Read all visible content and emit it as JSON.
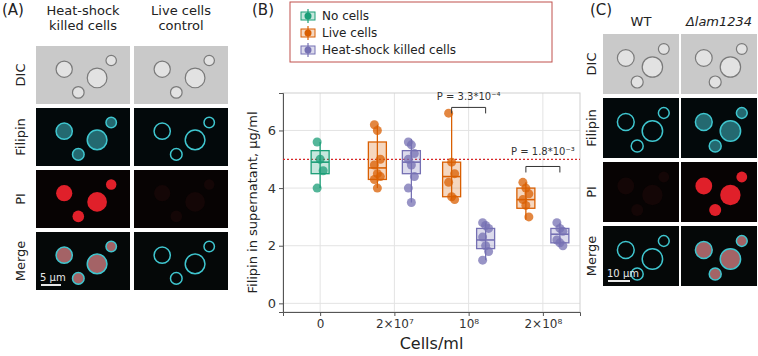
{
  "panels": {
    "a": {
      "label": "(A)",
      "columns": [
        [
          "Heat-shock",
          "killed cells"
        ],
        [
          "Live cells",
          "control"
        ]
      ],
      "rows": [
        "DIC",
        "Filipin",
        "PI",
        "Merge"
      ],
      "scale_bar": "5 µm"
    },
    "c": {
      "label": "(C)",
      "columns": [
        "WT",
        "Δlam1234"
      ],
      "rows": [
        "DIC",
        "Filipin",
        "PI",
        "Merge"
      ],
      "scale_bar": "10 µm"
    }
  },
  "chart_data": {
    "type": "box",
    "panel_label": "(B)",
    "xlabel": "Cells/ml",
    "ylabel": "Filipin in supernatant, µg/ml",
    "categories": [
      "0",
      "2×10⁷",
      "10⁸",
      "2×10⁸"
    ],
    "ylim": [
      -0.3,
      7.3
    ],
    "yticks": [
      0,
      2,
      4,
      6
    ],
    "grid": true,
    "legend": "top",
    "series": [
      {
        "name": "No cells",
        "color": "#1b9e77",
        "boxes": [
          {
            "whisker_low": 4.0,
            "q1": 4.5,
            "median": 4.9,
            "q3": 5.3,
            "whisker_high": 5.6,
            "points": [
              5.6,
              5.0,
              4.6,
              4.0
            ]
          },
          null,
          null,
          null
        ]
      },
      {
        "name": "Live cells",
        "color": "#d95f02",
        "boxes": [
          null,
          {
            "whisker_low": 4.0,
            "q1": 4.3,
            "median": 4.7,
            "q3": 5.6,
            "whisker_high": 6.2,
            "points": [
              6.2,
              6.0,
              5.0,
              4.8,
              4.5,
              4.4,
              4.3,
              4.0
            ]
          },
          {
            "whisker_low": 3.6,
            "q1": 3.7,
            "median": 4.4,
            "q3": 4.9,
            "whisker_high": 6.6,
            "points": [
              6.6,
              4.9,
              4.5,
              4.2,
              3.7,
              3.6
            ]
          },
          {
            "whisker_low": 2.9,
            "q1": 3.3,
            "median": 3.6,
            "q3": 4.0,
            "whisker_high": 4.2,
            "points": [
              4.2,
              4.0,
              3.8,
              3.6,
              3.4,
              3.0
            ]
          }
        ]
      },
      {
        "name": "Heat-shock killed cells",
        "color": "#7570b3",
        "boxes": [
          null,
          {
            "whisker_low": 3.5,
            "q1": 4.5,
            "median": 4.9,
            "q3": 5.3,
            "whisker_high": 5.7,
            "points": [
              5.6,
              5.5,
              5.2,
              5.0,
              4.8,
              4.4,
              4.0,
              3.5
            ]
          },
          {
            "whisker_low": 1.5,
            "q1": 1.9,
            "median": 2.2,
            "q3": 2.6,
            "whisker_high": 2.8,
            "points": [
              2.8,
              2.7,
              2.6,
              2.3,
              2.0,
              1.8,
              1.5
            ]
          },
          {
            "whisker_low": 2.0,
            "q1": 2.1,
            "median": 2.4,
            "q3": 2.6,
            "whisker_high": 2.8,
            "points": [
              2.8,
              2.6,
              2.5,
              2.2,
              2.1,
              2.0
            ]
          }
        ]
      }
    ],
    "reference_line": {
      "value": 5,
      "color": "#d62728",
      "line_style": "dotted"
    },
    "annotations": [
      {
        "text": "P = 3.3*10⁻⁴",
        "category": "10⁸",
        "between": [
          "Live cells",
          "Heat-shock killed cells"
        ],
        "y": 6.8,
        "text_y": 7.05
      },
      {
        "text": "P = 1.8*10⁻³",
        "category": "2×10⁸",
        "between": [
          "Live cells",
          "Heat-shock killed cells"
        ],
        "y": 4.75,
        "text_y": 5.15
      }
    ]
  }
}
